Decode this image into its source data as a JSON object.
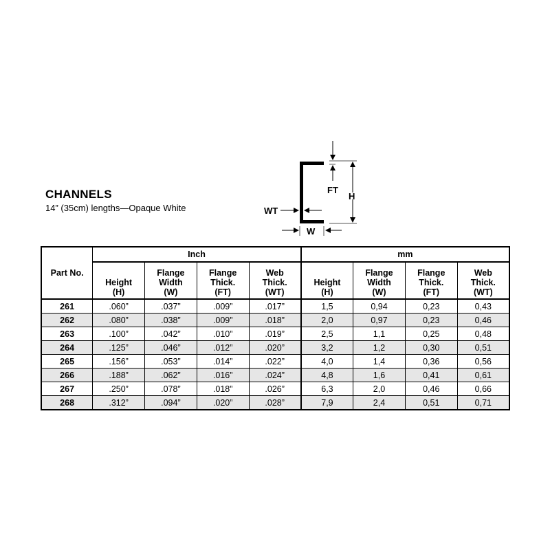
{
  "title": "CHANNELS",
  "subtitle": "14” (35cm) lengths—Opaque White",
  "diagram": {
    "labels": {
      "ft": "FT",
      "h": "H",
      "wt": "WT",
      "w": "W"
    }
  },
  "table": {
    "part_header": "Part No.",
    "groups": [
      "Inch",
      "mm"
    ],
    "columns": [
      {
        "l1": "",
        "l2": "Height",
        "l3": "(H)"
      },
      {
        "l1": "Flange",
        "l2": "Width",
        "l3": "(W)"
      },
      {
        "l1": "Flange",
        "l2": "Thick.",
        "l3": "(FT)"
      },
      {
        "l1": "Web",
        "l2": "Thick.",
        "l3": "(WT)"
      },
      {
        "l1": "",
        "l2": "Height",
        "l3": "(H)"
      },
      {
        "l1": "Flange",
        "l2": "Width",
        "l3": "(W)"
      },
      {
        "l1": "Flange",
        "l2": "Thick.",
        "l3": "(FT)"
      },
      {
        "l1": "Web",
        "l2": "Thick.",
        "l3": "(WT)"
      }
    ],
    "rows": [
      [
        "261",
        ".060”",
        ".037”",
        ".009”",
        ".017”",
        "1,5",
        "0,94",
        "0,23",
        "0,43"
      ],
      [
        "262",
        ".080”",
        ".038”",
        ".009”",
        ".018”",
        "2,0",
        "0,97",
        "0,23",
        "0,46"
      ],
      [
        "263",
        ".100”",
        ".042”",
        ".010”",
        ".019”",
        "2,5",
        "1,1",
        "0,25",
        "0,48"
      ],
      [
        "264",
        ".125”",
        ".046”",
        ".012”",
        ".020”",
        "3,2",
        "1,2",
        "0,30",
        "0,51"
      ],
      [
        "265",
        ".156”",
        ".053”",
        ".014”",
        ".022”",
        "4,0",
        "1,4",
        "0,36",
        "0,56"
      ],
      [
        "266",
        ".188”",
        ".062”",
        ".016”",
        ".024”",
        "4,8",
        "1,6",
        "0,41",
        "0,61"
      ],
      [
        "267",
        ".250”",
        ".078”",
        ".018”",
        ".026”",
        "6,3",
        "2,0",
        "0,46",
        "0,66"
      ],
      [
        "268",
        ".312”",
        ".094”",
        ".020”",
        ".028”",
        "7,9",
        "2,4",
        "0,51",
        "0,71"
      ]
    ]
  }
}
